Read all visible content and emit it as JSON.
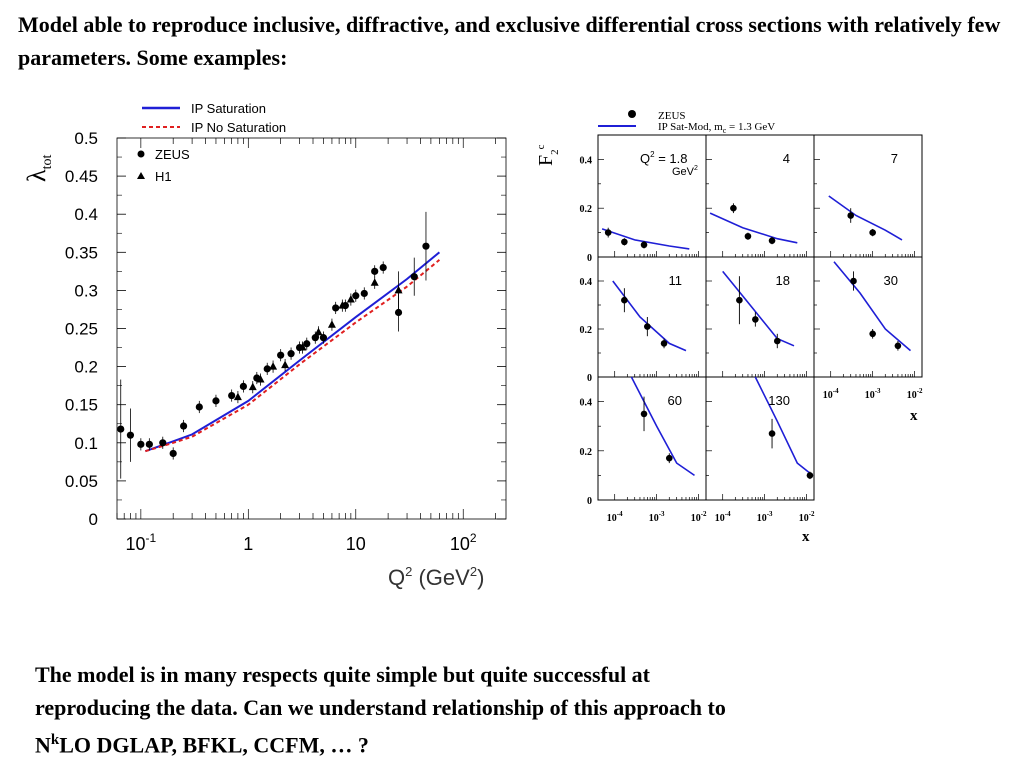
{
  "slide": {
    "top_text": "Model able to reproduce inclusive, diffractive, and exclusive differential cross sections with relatively few parameters.  Some examples:",
    "bottom_text_1": "The model is in many respects quite simple but quite successful at",
    "bottom_text_2": "reproducing the data.  Can we understand relationship of this approach to",
    "bottom_text_3_pre": "N",
    "bottom_text_3_sup": "k",
    "bottom_text_3_post": "LO DGLAP, BFKL, CCFM, … ?"
  },
  "colors": {
    "curve_blue": "#1f1fd6",
    "curve_red": "#e02020",
    "data": "#000000"
  },
  "chart_data": [
    {
      "type": "scatter",
      "yaxis_label": "λ",
      "yaxis_label_sub": "tot",
      "xlabel_main": "Q",
      "xlabel_sup": "2",
      "xlabel_unit_open": " (GeV",
      "xlabel_unit_sup": "2",
      "xlabel_unit_close": ")",
      "x_scale": "log",
      "xlim": [
        0.06,
        250
      ],
      "ylim": [
        0,
        0.5
      ],
      "y_ticks": [
        "0",
        "0.05",
        "0.1",
        "0.15",
        "0.2",
        "0.25",
        "0.3",
        "0.35",
        "0.4",
        "0.45",
        "0.5"
      ],
      "x_ticks": [
        {
          "value": 0.1,
          "base": "10",
          "exp": "-1"
        },
        {
          "value": 1,
          "base": "1",
          "exp": ""
        },
        {
          "value": 10,
          "base": "10",
          "exp": ""
        },
        {
          "value": 100,
          "base": "10",
          "exp": "2"
        }
      ],
      "legend_lines": [
        {
          "label": "IP Saturation",
          "style": "solid",
          "color": "#1f1fd6"
        },
        {
          "label": "IP No Saturation",
          "style": "dashed",
          "color": "#e02020"
        }
      ],
      "legend_markers": [
        {
          "label": "ZEUS",
          "marker": "circle"
        },
        {
          "label": "H1",
          "marker": "triangle"
        }
      ],
      "series": [
        {
          "name": "ZEUS",
          "marker": "circle",
          "points": [
            [
              0.065,
              0.118,
              0.065
            ],
            [
              0.08,
              0.11,
              0.035
            ],
            [
              0.1,
              0.098,
              0
            ],
            [
              0.12,
              0.098,
              0
            ],
            [
              0.16,
              0.1,
              0
            ],
            [
              0.2,
              0.086,
              0
            ],
            [
              0.25,
              0.122,
              0
            ],
            [
              0.35,
              0.147,
              0
            ],
            [
              0.5,
              0.155,
              0
            ],
            [
              0.7,
              0.162,
              0
            ],
            [
              0.9,
              0.174,
              0
            ],
            [
              1.2,
              0.185,
              0
            ],
            [
              1.5,
              0.197,
              0
            ],
            [
              2.0,
              0.215,
              0
            ],
            [
              2.5,
              0.217,
              0
            ],
            [
              3.0,
              0.225,
              0
            ],
            [
              3.5,
              0.23,
              0
            ],
            [
              4.2,
              0.238,
              0
            ],
            [
              5.0,
              0.238,
              0
            ],
            [
              6.5,
              0.277,
              0
            ],
            [
              8.0,
              0.28,
              0
            ],
            [
              10,
              0.293,
              0
            ],
            [
              12,
              0.296,
              0
            ],
            [
              15,
              0.325,
              0
            ],
            [
              18,
              0.33,
              0
            ],
            [
              25,
              0.271,
              0.025
            ],
            [
              35,
              0.318,
              0.025
            ],
            [
              45,
              0.358,
              0.045
            ]
          ]
        },
        {
          "name": "H1",
          "marker": "triangle",
          "points": [
            [
              0.8,
              0.16,
              0
            ],
            [
              1.1,
              0.173,
              0
            ],
            [
              1.3,
              0.183,
              0
            ],
            [
              1.7,
              0.2,
              0
            ],
            [
              2.2,
              0.202,
              0
            ],
            [
              3.2,
              0.225,
              0
            ],
            [
              4.5,
              0.245,
              0
            ],
            [
              6,
              0.255,
              0
            ],
            [
              7.5,
              0.28,
              0
            ],
            [
              9,
              0.288,
              0
            ],
            [
              15,
              0.31,
              0
            ],
            [
              25,
              0.3,
              0.025
            ]
          ]
        }
      ],
      "curves": [
        {
          "name": "IP Saturation",
          "points": [
            [
              0.11,
              0.089
            ],
            [
              0.2,
              0.102
            ],
            [
              0.3,
              0.111
            ],
            [
              1,
              0.155
            ],
            [
              3,
              0.208
            ],
            [
              10,
              0.265
            ],
            [
              30,
              0.315
            ],
            [
              60,
              0.35
            ]
          ]
        },
        {
          "name": "IP No Saturation",
          "points": [
            [
              0.11,
              0.089
            ],
            [
              0.2,
              0.1
            ],
            [
              0.3,
              0.108
            ],
            [
              1,
              0.15
            ],
            [
              3,
              0.203
            ],
            [
              10,
              0.258
            ],
            [
              30,
              0.305
            ],
            [
              60,
              0.34
            ]
          ]
        }
      ]
    },
    {
      "type": "scatter",
      "ylabel_main": "F",
      "ylabel_sub": "2",
      "ylabel_sup": "c",
      "xlabel": "x",
      "x_scale": "log",
      "xlim": [
        4e-05,
        0.015
      ],
      "ylim": [
        0,
        0.5
      ],
      "y_ticks": [
        "0",
        "0.2",
        "0.4"
      ],
      "x_ticks": [
        {
          "value": 0.0001,
          "base": "10",
          "exp": "-4"
        },
        {
          "value": 0.001,
          "base": "10",
          "exp": "-3"
        },
        {
          "value": 0.01,
          "base": "10",
          "exp": "-2"
        }
      ],
      "legend": [
        {
          "label": "ZEUS",
          "marker": "circle"
        },
        {
          "label": "IP Sat-Mod,  m",
          "label_sub": "c",
          "label_rest": " = 1.3 GeV",
          "style": "solid",
          "color": "#1f1fd6"
        }
      ],
      "q2_label_prefix": "Q",
      "q2_label_sup": "2",
      "q2_unit": "GeV",
      "q2_unit_sup": "2",
      "panels": [
        {
          "q2": "1.8",
          "points": [
            [
              7e-05,
              0.1,
              0.02
            ],
            [
              0.00017,
              0.062,
              0
            ],
            [
              0.0005,
              0.05,
              0
            ]
          ],
          "curve": [
            [
              5e-05,
              0.115
            ],
            [
              0.0003,
              0.07
            ],
            [
              0.002,
              0.045
            ],
            [
              0.006,
              0.033
            ]
          ]
        },
        {
          "q2": "4",
          "points": [
            [
              0.00018,
              0.2,
              0.02
            ],
            [
              0.0004,
              0.085,
              0
            ],
            [
              0.0015,
              0.067,
              0
            ]
          ],
          "curve": [
            [
              5e-05,
              0.18
            ],
            [
              0.0003,
              0.12
            ],
            [
              0.002,
              0.075
            ],
            [
              0.006,
              0.058
            ]
          ]
        },
        {
          "q2": "7",
          "points": [
            [
              0.0003,
              0.17,
              0.03
            ],
            [
              0.001,
              0.1,
              0
            ]
          ],
          "curve": [
            [
              9e-05,
              0.25
            ],
            [
              0.0004,
              0.17
            ],
            [
              0.002,
              0.11
            ],
            [
              0.005,
              0.07
            ]
          ]
        },
        {
          "q2": "11",
          "points": [
            [
              0.00017,
              0.32,
              0.05
            ],
            [
              0.0006,
              0.21,
              0.04
            ],
            [
              0.0015,
              0.14,
              0.02
            ]
          ],
          "curve": [
            [
              9e-05,
              0.4
            ],
            [
              0.0004,
              0.25
            ],
            [
              0.002,
              0.14
            ],
            [
              0.005,
              0.11
            ]
          ]
        },
        {
          "q2": "18",
          "points": [
            [
              0.00025,
              0.32,
              0.1
            ],
            [
              0.0006,
              0.24,
              0.03
            ],
            [
              0.002,
              0.15,
              0.03
            ]
          ],
          "curve": [
            [
              0.0001,
              0.44
            ],
            [
              0.0005,
              0.29
            ],
            [
              0.002,
              0.16
            ],
            [
              0.005,
              0.13
            ]
          ]
        },
        {
          "q2": "30",
          "points": [
            [
              0.00035,
              0.4,
              0.04
            ],
            [
              0.001,
              0.18,
              0.02
            ],
            [
              0.004,
              0.13,
              0.02
            ]
          ],
          "curve": [
            [
              0.00012,
              0.48
            ],
            [
              0.0005,
              0.35
            ],
            [
              0.002,
              0.2
            ],
            [
              0.008,
              0.11
            ]
          ]
        },
        {
          "q2": "60",
          "points": [
            [
              0.0005,
              0.35,
              0.07
            ],
            [
              0.002,
              0.17,
              0.02
            ]
          ],
          "curve": [
            [
              0.00025,
              0.5
            ],
            [
              0.001,
              0.3
            ],
            [
              0.003,
              0.15
            ],
            [
              0.008,
              0.1
            ]
          ]
        },
        {
          "q2": "130",
          "points": [
            [
              0.0015,
              0.27,
              0.06
            ],
            [
              0.012,
              0.1,
              0
            ]
          ],
          "curve": [
            [
              0.0006,
              0.5
            ],
            [
              0.002,
              0.32
            ],
            [
              0.006,
              0.15
            ],
            [
              0.014,
              0.1
            ]
          ]
        }
      ]
    }
  ]
}
